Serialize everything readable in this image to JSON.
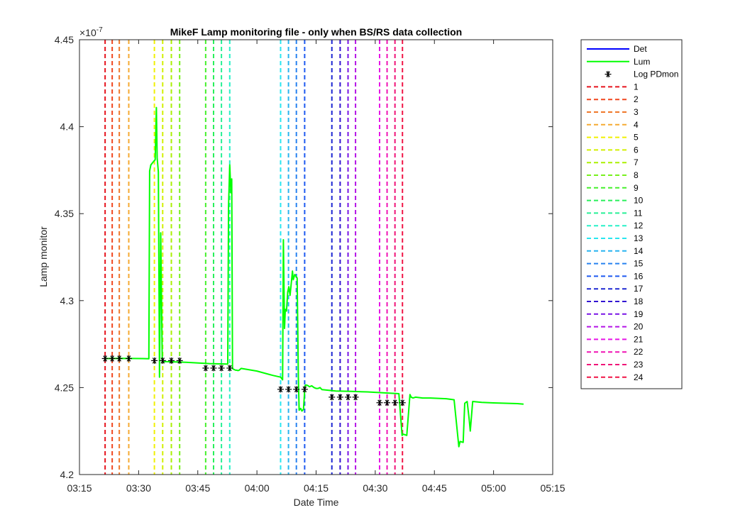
{
  "chart_data": {
    "type": "line",
    "title": "MikeF Lamp monitoring file - only when BS/RS data collection",
    "xlabel": "Date Time",
    "ylabel": "Lamp monitor",
    "exponent_label": "×10",
    "exponent_power": "-7",
    "xlim": [
      195,
      315
    ],
    "ylim": [
      4.2,
      4.45
    ],
    "x_ticks": [
      {
        "value": 195,
        "label": "03:15"
      },
      {
        "value": 210,
        "label": "03:30"
      },
      {
        "value": 225,
        "label": "03:45"
      },
      {
        "value": 240,
        "label": "04:00"
      },
      {
        "value": 255,
        "label": "04:15"
      },
      {
        "value": 270,
        "label": "04:30"
      },
      {
        "value": 285,
        "label": "04:45"
      },
      {
        "value": 300,
        "label": "05:00"
      },
      {
        "value": 315,
        "label": "05:15"
      }
    ],
    "y_ticks": [
      {
        "value": 4.2,
        "label": "4.2"
      },
      {
        "value": 4.25,
        "label": "4.25"
      },
      {
        "value": 4.3,
        "label": "4.3"
      },
      {
        "value": 4.35,
        "label": "4.35"
      },
      {
        "value": 4.4,
        "label": "4.4"
      },
      {
        "value": 4.45,
        "label": "4.45"
      }
    ],
    "series": [
      {
        "name": "Det",
        "color": "#0000ff",
        "x": [],
        "y": []
      },
      {
        "name": "Lum",
        "color": "#00ff00",
        "x": [
          201.5,
          206,
          211,
          212.6,
          212.8,
          213.1,
          213.8,
          214.2,
          214.5,
          214.7,
          215.0,
          215.3,
          215.6,
          216.0,
          222.0,
          228.0,
          232.6,
          232.8,
          233.1,
          233.4,
          233.6,
          233.8,
          234.1,
          234.3,
          234.6,
          234.9,
          235.2,
          235.5,
          236.0,
          240.0,
          244.0,
          246.0,
          246.5,
          246.7,
          247.0,
          247.2,
          247.5,
          247.8,
          248.1,
          248.4,
          248.7,
          249.0,
          249.2,
          249.6,
          250.2,
          250.5,
          250.7,
          251.1,
          251.4,
          251.8,
          252.2,
          252.4,
          252.9,
          253.3,
          253.9,
          254.5,
          255.0,
          255.5,
          256.0,
          256.5,
          260.0,
          264.0,
          268.0,
          272.0,
          276.0,
          276.8,
          277.1,
          278.0,
          278.8,
          279.1,
          279.6,
          280.2,
          282.0,
          284.0,
          286.0,
          288.0,
          290.0,
          291.2,
          291.5,
          292.3,
          292.7,
          293.3,
          293.8,
          294.1,
          294.7,
          297.0,
          300.0,
          303.0,
          306.0,
          307.6
        ],
        "y": [
          4.2667,
          4.2668,
          4.2667,
          4.2666,
          4.3745,
          4.378,
          4.38,
          4.381,
          4.411,
          4.382,
          4.374,
          4.256,
          4.339,
          4.265,
          4.2645,
          4.2638,
          4.2635,
          4.354,
          4.378,
          4.362,
          4.37,
          4.261,
          4.2605,
          4.2603,
          4.26,
          4.26,
          4.2598,
          4.26,
          4.261,
          4.2595,
          4.257,
          4.256,
          4.2545,
          4.335,
          4.284,
          4.295,
          4.294,
          4.305,
          4.308,
          4.303,
          4.31,
          4.317,
          4.312,
          4.315,
          4.313,
          4.256,
          4.237,
          4.238,
          4.2365,
          4.2375,
          4.251,
          4.2515,
          4.2512,
          4.2505,
          4.251,
          4.25,
          4.2495,
          4.2495,
          4.25,
          4.2488,
          4.248,
          4.2478,
          4.2475,
          4.247,
          4.2465,
          4.2225,
          4.2232,
          4.2225,
          4.246,
          4.2445,
          4.244,
          4.2445,
          4.244,
          4.244,
          4.2438,
          4.2436,
          4.243,
          4.216,
          4.219,
          4.2185,
          4.241,
          4.242,
          4.232,
          4.225,
          4.242,
          4.2415,
          4.2412,
          4.241,
          4.2408,
          4.2405
        ]
      },
      {
        "name": "Log PDmon",
        "marker": "*",
        "color": "#000000",
        "x": [
          201.5,
          203.3,
          205.1,
          207.5,
          214.0,
          216.1,
          218.3,
          220.4,
          227.0,
          229.0,
          231.0,
          233.1,
          246.0,
          248.0,
          250.0,
          252.1,
          259.0,
          261.1,
          263.1,
          265.0,
          271.1,
          273.0,
          275.0,
          276.9
        ],
        "y": [
          4.2667,
          4.2667,
          4.2667,
          4.2667,
          4.2655,
          4.2655,
          4.2655,
          4.2655,
          4.2612,
          4.2612,
          4.2612,
          4.2612,
          4.249,
          4.249,
          4.249,
          4.249,
          4.2445,
          4.2445,
          4.2445,
          4.2445,
          4.2413,
          4.2413,
          4.2413,
          4.2413
        ]
      }
    ],
    "vlines": [
      {
        "name": "1",
        "x": 201.5,
        "color": "#e6141e"
      },
      {
        "name": "2",
        "x": 203.3,
        "color": "#f0461e"
      },
      {
        "name": "3",
        "x": 205.1,
        "color": "#f0782a"
      },
      {
        "name": "4",
        "x": 207.5,
        "color": "#f5aa32"
      },
      {
        "name": "5",
        "x": 214.0,
        "color": "#f0f000"
      },
      {
        "name": "6",
        "x": 216.1,
        "color": "#d2f000"
      },
      {
        "name": "7",
        "x": 218.3,
        "color": "#aaf000"
      },
      {
        "name": "8",
        "x": 220.4,
        "color": "#78f01e"
      },
      {
        "name": "9",
        "x": 227.0,
        "color": "#46f02d"
      },
      {
        "name": "10",
        "x": 229.0,
        "color": "#28f05a"
      },
      {
        "name": "11",
        "x": 231.0,
        "color": "#28f096"
      },
      {
        "name": "12",
        "x": 233.1,
        "color": "#28f0c8"
      },
      {
        "name": "13",
        "x": 246.0,
        "color": "#28e6f0"
      },
      {
        "name": "14",
        "x": 248.0,
        "color": "#28b4f0"
      },
      {
        "name": "15",
        "x": 250.0,
        "color": "#2882f0"
      },
      {
        "name": "16",
        "x": 252.1,
        "color": "#1e5af0"
      },
      {
        "name": "17",
        "x": 259.0,
        "color": "#1e28d2"
      },
      {
        "name": "18",
        "x": 261.1,
        "color": "#3214d2"
      },
      {
        "name": "19",
        "x": 263.1,
        "color": "#7814e6"
      },
      {
        "name": "20",
        "x": 265.0,
        "color": "#b414e6"
      },
      {
        "name": "21",
        "x": 271.1,
        "color": "#e614e6"
      },
      {
        "name": "22",
        "x": 273.0,
        "color": "#f014b4"
      },
      {
        "name": "23",
        "x": 275.0,
        "color": "#f01478"
      },
      {
        "name": "24",
        "x": 276.9,
        "color": "#f01446"
      }
    ],
    "legend": "outside-right",
    "grid": false
  }
}
